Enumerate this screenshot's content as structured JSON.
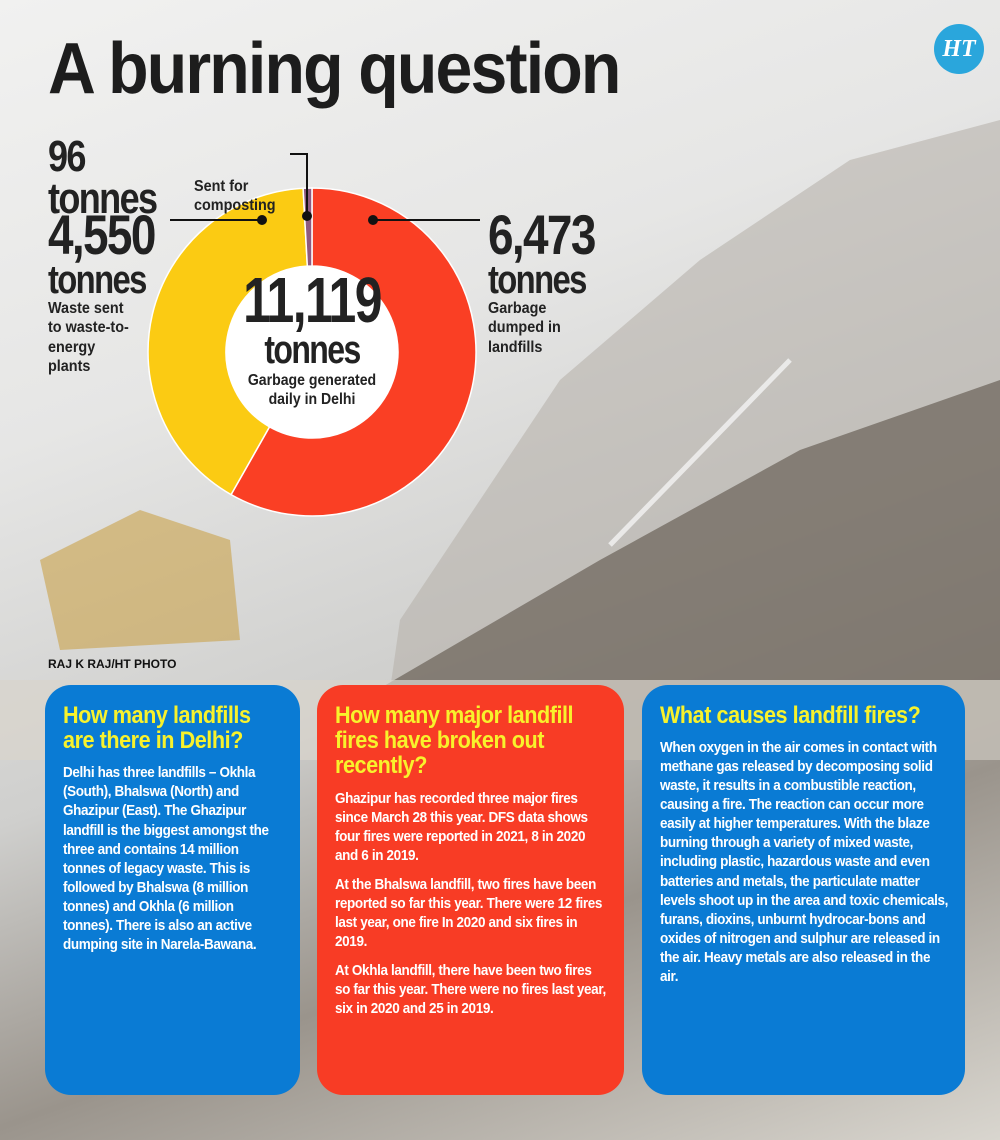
{
  "title": "A burning question",
  "logo": "HT",
  "photo_credit": "RAJ K RAJ/HT PHOTO",
  "chart_data": {
    "type": "pie",
    "variant": "donut",
    "total": {
      "value": "11,119",
      "unit": "tonnes",
      "label": "Garbage generated daily in Delhi"
    },
    "slices": [
      {
        "value": 6473,
        "display": "6,473",
        "unit": "tonnes",
        "label": "Garbage dumped in landfills",
        "color": "#fa3f24"
      },
      {
        "value": 4550,
        "display": "4,550",
        "unit": "tonnes",
        "label": "Waste sent to waste-to-energy plants",
        "color": "#fbcb13"
      },
      {
        "value": 96,
        "display": "96",
        "unit": "tonnes",
        "label": "Sent for composting",
        "color": "#8e5a80"
      }
    ]
  },
  "boxes": [
    {
      "color": "#0a7bd4",
      "heading": "How many landfills are there in Delhi?",
      "paragraphs": [
        "Delhi has three landfills – Okhla (South), Bhalswa (North) and Ghazipur (East). The Ghazipur landfill is the biggest amongst the three and contains 14 million tonnes of legacy waste. This is followed by Bhalswa (8 million tonnes) and Okhla (6 million tonnes). There is also an active dumping site in Narela-Bawana."
      ]
    },
    {
      "color": "#f83c25",
      "heading": "How many major landfill fires have broken out recently?",
      "paragraphs": [
        "Ghazipur has recorded three major fires since March 28 this year. DFS data shows four fires were reported in 2021, 8 in 2020 and 6 in 2019.",
        "At the Bhalswa landfill, two fires have been reported so far this year. There were 12 fires last year, one fire In 2020 and six fires in 2019.",
        "At Okhla landfill, there have been two fires so far this year. There were no fires last year, six in 2020 and 25 in 2019."
      ]
    },
    {
      "color": "#0a7bd4",
      "heading": "What causes landfill fires?",
      "paragraphs": [
        "When oxygen in the air comes in contact with methane gas released by decomposing solid waste, it results in a combustible reaction, causing a fire. The reaction can occur more easily at higher temperatures. With the blaze burning through a variety of mixed waste, including plastic, hazardous waste and even batteries and metals, the particulate matter levels shoot up in the area and toxic chemicals, furans, dioxins, unburnt hydrocar-bons and oxides of nitrogen and sulphur are released in the air. Heavy metals are also released in the air."
      ]
    }
  ]
}
